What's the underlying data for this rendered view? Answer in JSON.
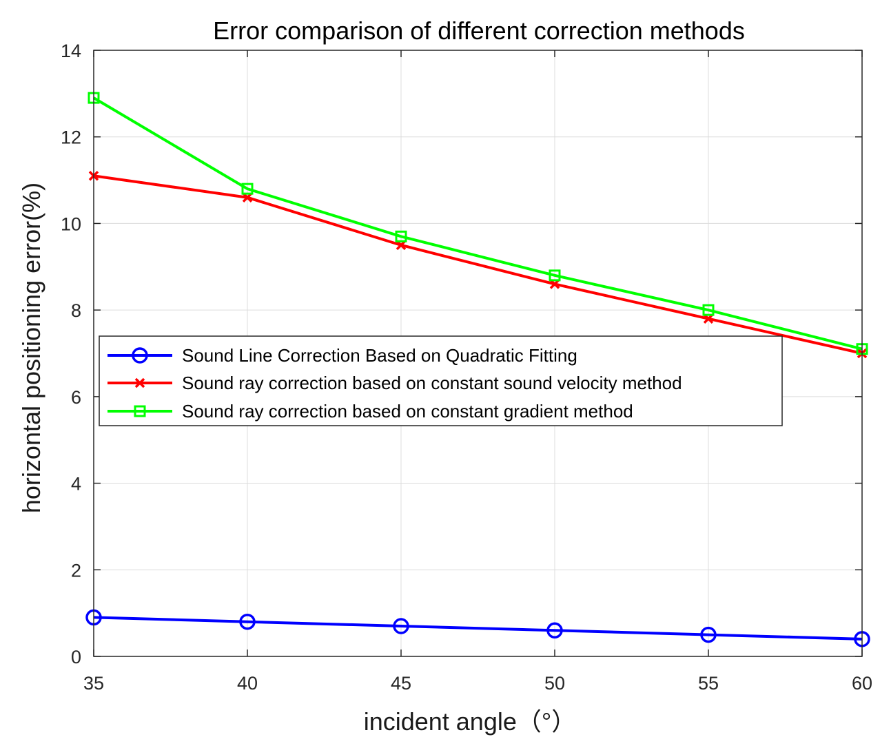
{
  "chart_data": {
    "type": "line",
    "title": "Error comparison of different correction methods",
    "xlabel": "incident angle（°）",
    "ylabel": "horizontal positioning error(%)",
    "x": [
      35,
      40,
      45,
      50,
      55,
      60
    ],
    "xlim": [
      35,
      60
    ],
    "ylim": [
      0,
      14
    ],
    "xticks": [
      "35",
      "40",
      "45",
      "50",
      "55",
      "60"
    ],
    "yticks": [
      "0",
      "2",
      "4",
      "6",
      "8",
      "10",
      "12",
      "14"
    ],
    "grid": true,
    "legend_position": "center-left",
    "series": [
      {
        "name": "Sound Line Correction Based on Quadratic Fitting",
        "values": [
          0.9,
          0.8,
          0.7,
          0.6,
          0.5,
          0.4
        ],
        "color": "#0000ff",
        "marker": "circle"
      },
      {
        "name": "Sound ray correction based on constant sound velocity method",
        "values": [
          11.1,
          10.6,
          9.5,
          8.6,
          7.8,
          7.0
        ],
        "color": "#ff0000",
        "marker": "x"
      },
      {
        "name": "Sound ray correction based on constant gradient method",
        "values": [
          12.9,
          10.8,
          9.7,
          8.8,
          8.0,
          7.1
        ],
        "color": "#00ff00",
        "marker": "square"
      }
    ]
  }
}
